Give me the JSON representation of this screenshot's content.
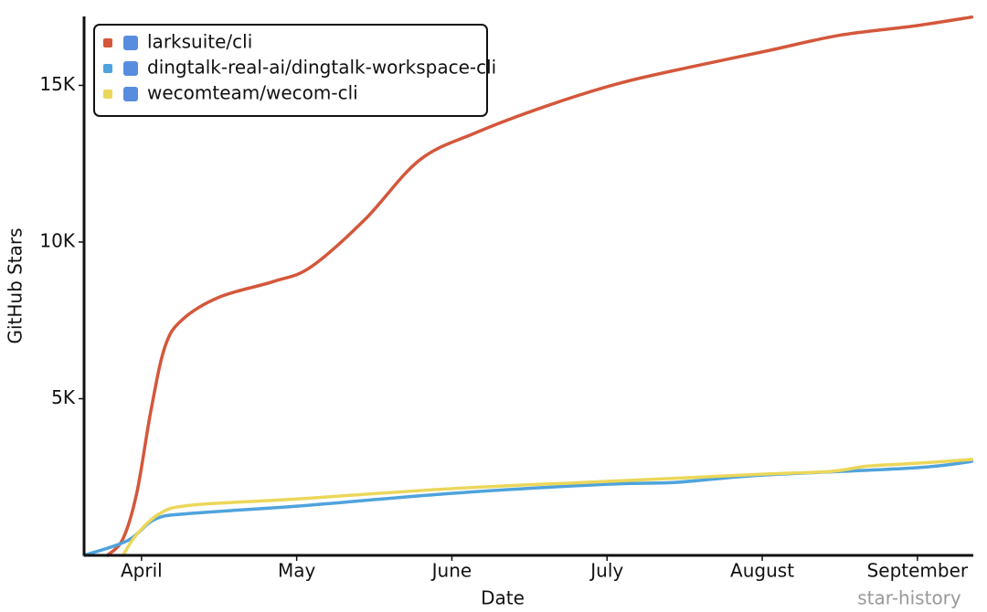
{
  "chart_data": {
    "type": "line",
    "xlabel": "Date",
    "ylabel": "GitHub Stars",
    "xlim": [
      0.63,
      6.36
    ],
    "xticks": [
      {
        "value": 1,
        "label": "April"
      },
      {
        "value": 2,
        "label": "May"
      },
      {
        "value": 3,
        "label": "June"
      },
      {
        "value": 4,
        "label": "July"
      },
      {
        "value": 5,
        "label": "August"
      },
      {
        "value": 6,
        "label": "September"
      }
    ],
    "ylim": [
      0,
      17200
    ],
    "yticks": [
      {
        "value": 5000,
        "label": "5K"
      },
      {
        "value": 10000,
        "label": "10K"
      },
      {
        "value": 15000,
        "label": "15K"
      }
    ],
    "legend": "upper left",
    "watermark": "star-history",
    "series": [
      {
        "name": "larksuite/cli",
        "color": "#d4573b",
        "x": [
          0.78,
          0.88,
          0.97,
          1.06,
          1.15,
          1.26,
          1.5,
          1.85,
          2.09,
          2.44,
          2.79,
          3.15,
          3.62,
          4.09,
          4.56,
          5.03,
          5.5,
          5.97,
          6.35
        ],
        "values": [
          0,
          520,
          2000,
          4600,
          6640,
          7510,
          8240,
          8740,
          9200,
          10720,
          12610,
          13480,
          14360,
          15080,
          15610,
          16100,
          16600,
          16890,
          17180
        ]
      },
      {
        "name": "dingtalk-real-ai/dingtalk-workspace-cli",
        "color": "#4fa3dc",
        "x": [
          0.63,
          0.91,
          1.09,
          1.32,
          2,
          3,
          4,
          4.44,
          5,
          6,
          6.35
        ],
        "values": [
          0,
          470,
          1160,
          1340,
          1570,
          1980,
          2270,
          2330,
          2560,
          2800,
          3000
        ]
      },
      {
        "name": "wecomteam/wecom-cli",
        "color": "#ebd75a",
        "x": [
          0.88,
          0.97,
          1.12,
          1.32,
          2,
          3,
          4,
          5,
          5.44,
          5.68,
          6,
          6.35
        ],
        "values": [
          0,
          670,
          1340,
          1600,
          1800,
          2130,
          2360,
          2590,
          2680,
          2850,
          2940,
          3060
        ]
      }
    ]
  }
}
